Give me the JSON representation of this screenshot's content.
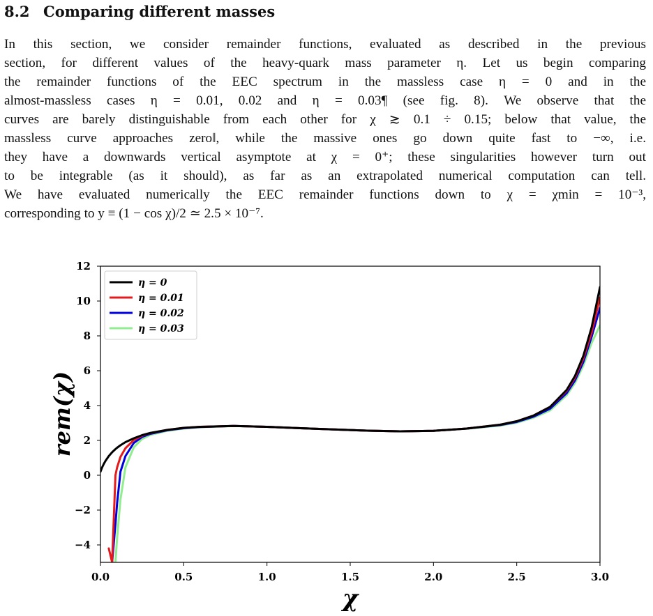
{
  "section": {
    "number": "8.2",
    "title": "Comparing different masses"
  },
  "paragraph_lines": [
    "In this section, we consider remainder functions, evaluated as described in the previous",
    "section, for different values of the heavy-quark mass parameter η. Let us begin comparing",
    "the remainder functions of the EEC spectrum in the massless case η = 0 and in the",
    "almost-massless cases η = 0.01, 0.02 and η = 0.03¶ (see fig. 8). We observe that the",
    "curves are barely distinguishable from each other for χ ≳ 0.1 ÷ 0.15; below that value, the",
    "massless curve approaches zero‖, while the massive ones go down quite fast to −∞, i.e.",
    "they have a downwards vertical asymptote at χ = 0⁺; these singularities however turn out",
    "to be integrable (as it should), as far as an extrapolated numerical computation can tell.",
    "We have evaluated numerically the EEC remainder functions down to χ = χmin = 10⁻³,",
    "corresponding to y ≡ (1 − cos χ)/2 ≃ 2.5 × 10⁻⁷."
  ],
  "chart_data": {
    "type": "line",
    "xlabel": "χ",
    "ylabel": "rem(χ)",
    "xlim": [
      0.0,
      3.0
    ],
    "ylim": [
      -5,
      12
    ],
    "xticks": [
      "0.0",
      "0.5",
      "1.0",
      "1.5",
      "2.0",
      "2.5",
      "3.0"
    ],
    "yticks": [
      "−4",
      "−2",
      "0",
      "2",
      "4",
      "6",
      "8",
      "10",
      "12"
    ],
    "grid": false,
    "legend_position": "top-left",
    "x": [
      0.0,
      0.01,
      0.02,
      0.03,
      0.05,
      0.07,
      0.09,
      0.1,
      0.12,
      0.15,
      0.2,
      0.25,
      0.3,
      0.4,
      0.5,
      0.6,
      0.8,
      1.0,
      1.2,
      1.4,
      1.6,
      1.8,
      2.0,
      2.2,
      2.4,
      2.5,
      2.6,
      2.7,
      2.8,
      2.85,
      2.9,
      2.95,
      3.0
    ],
    "series": [
      {
        "name": "η = 0",
        "color": "#000000",
        "values": [
          0.2,
          0.45,
          0.65,
          0.82,
          1.1,
          1.32,
          1.5,
          1.58,
          1.72,
          1.9,
          2.12,
          2.3,
          2.43,
          2.6,
          2.72,
          2.78,
          2.83,
          2.78,
          2.7,
          2.63,
          2.56,
          2.52,
          2.55,
          2.68,
          2.9,
          3.1,
          3.42,
          3.92,
          4.9,
          5.7,
          6.85,
          8.5,
          10.8
        ]
      },
      {
        "name": "η = 0.01",
        "color": "#e41a1c",
        "values": [
          null,
          null,
          null,
          null,
          -4.2,
          -5.0,
          0.0,
          0.45,
          1.05,
          1.55,
          2.02,
          2.27,
          2.42,
          2.6,
          2.72,
          2.78,
          2.83,
          2.78,
          2.7,
          2.63,
          2.56,
          2.52,
          2.55,
          2.68,
          2.9,
          3.1,
          3.42,
          3.92,
          4.85,
          5.6,
          6.7,
          8.2,
          10.2
        ]
      },
      {
        "name": "η = 0.02",
        "color": "#0000dd",
        "values": [
          null,
          null,
          null,
          null,
          null,
          -5.0,
          -2.8,
          -1.6,
          0.2,
          1.1,
          1.85,
          2.2,
          2.38,
          2.58,
          2.7,
          2.77,
          2.83,
          2.78,
          2.7,
          2.63,
          2.56,
          2.52,
          2.55,
          2.68,
          2.88,
          3.06,
          3.36,
          3.82,
          4.72,
          5.45,
          6.5,
          7.95,
          9.6
        ]
      },
      {
        "name": "η = 0.03",
        "color": "#90ee90",
        "values": [
          null,
          null,
          null,
          null,
          null,
          null,
          -5.0,
          -3.6,
          -1.4,
          0.45,
          1.6,
          2.08,
          2.32,
          2.55,
          2.68,
          2.76,
          2.82,
          2.78,
          2.7,
          2.63,
          2.56,
          2.52,
          2.55,
          2.67,
          2.85,
          3.02,
          3.3,
          3.72,
          4.6,
          5.3,
          6.3,
          7.6,
          8.6
        ]
      }
    ]
  }
}
